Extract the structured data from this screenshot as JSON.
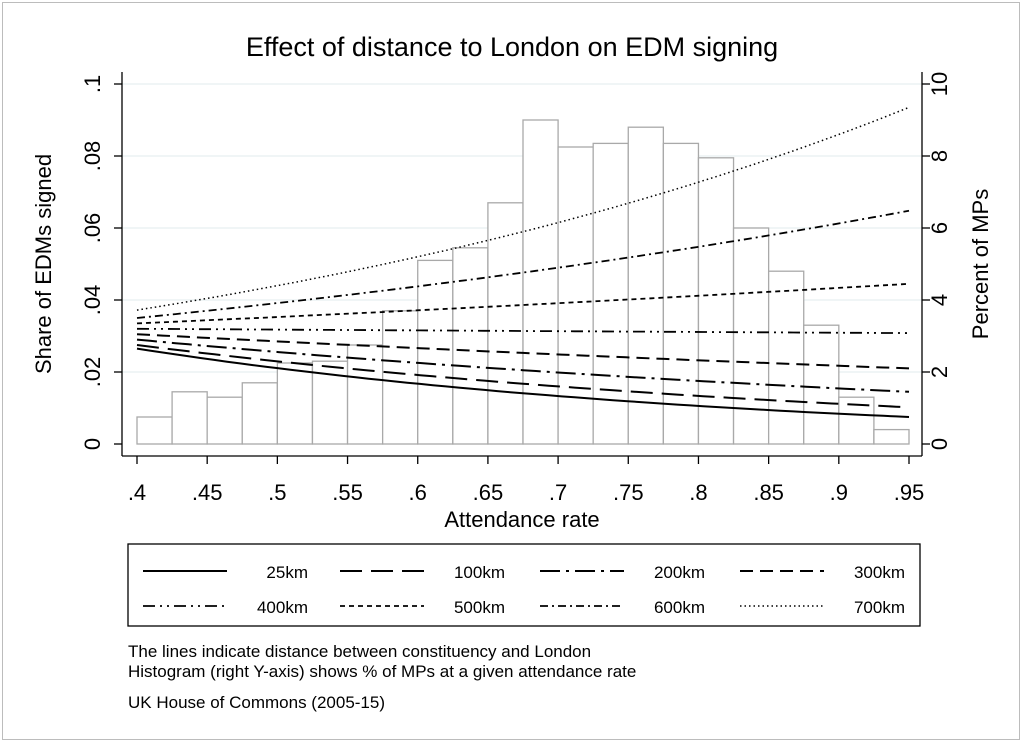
{
  "chart_data": {
    "type": "line",
    "title": "Effect of distance to London on EDM signing",
    "xlabel": "Attendance rate",
    "ylabel": "Share of EDMs signed",
    "y2label": "Percent of MPs",
    "xlim": [
      0.4,
      0.95
    ],
    "ylim": [
      0,
      0.1
    ],
    "y2lim": [
      0,
      10
    ],
    "x_ticks": [
      0.4,
      0.45,
      0.5,
      0.55,
      0.6,
      0.65,
      0.7,
      0.75,
      0.8,
      0.85,
      0.9,
      0.95
    ],
    "x_tick_labels": [
      ".4",
      ".45",
      ".5",
      ".55",
      ".6",
      ".65",
      ".7",
      ".75",
      ".8",
      ".85",
      ".9",
      ".95"
    ],
    "y_ticks": [
      0,
      0.02,
      0.04,
      0.06,
      0.08,
      0.1
    ],
    "y_tick_labels": [
      "0",
      ".02",
      ".04",
      ".06",
      ".08",
      ".1"
    ],
    "y2_ticks": [
      0,
      2,
      4,
      6,
      8,
      10
    ],
    "y2_tick_labels": [
      "0",
      "2",
      "4",
      "6",
      "8",
      "10"
    ],
    "grid": true,
    "legend_position": "bottom",
    "series": [
      {
        "name": "25km",
        "style": "solid",
        "x": [
          0.4,
          0.95
        ],
        "y": [
          0.0265,
          0.0075
        ]
      },
      {
        "name": "100km",
        "style": "longdash",
        "x": [
          0.4,
          0.95
        ],
        "y": [
          0.0275,
          0.0102
        ]
      },
      {
        "name": "200km",
        "style": "longdashdot",
        "x": [
          0.4,
          0.95
        ],
        "y": [
          0.029,
          0.0145
        ]
      },
      {
        "name": "300km",
        "style": "dash",
        "x": [
          0.4,
          0.95
        ],
        "y": [
          0.0305,
          0.021
        ]
      },
      {
        "name": "400km",
        "style": "dashdotdot",
        "x": [
          0.4,
          0.95
        ],
        "y": [
          0.032,
          0.0308
        ]
      },
      {
        "name": "500km",
        "style": "shortdash",
        "x": [
          0.4,
          0.95
        ],
        "y": [
          0.0335,
          0.0445
        ]
      },
      {
        "name": "600km",
        "style": "dashdot",
        "x": [
          0.4,
          0.95
        ],
        "y": [
          0.035,
          0.0648
        ]
      },
      {
        "name": "700km",
        "style": "dot",
        "x": [
          0.4,
          0.95
        ],
        "y": [
          0.0372,
          0.0935
        ]
      }
    ],
    "histogram": {
      "axis": "right",
      "bin_width": 0.025,
      "bin_starts": [
        0.4,
        0.425,
        0.45,
        0.475,
        0.5,
        0.525,
        0.55,
        0.575,
        0.6,
        0.625,
        0.65,
        0.675,
        0.7,
        0.725,
        0.75,
        0.775,
        0.8,
        0.825,
        0.85,
        0.875,
        0.9,
        0.925
      ],
      "percent": [
        0.75,
        1.45,
        1.3,
        1.7,
        2.25,
        2.3,
        2.75,
        3.7,
        5.1,
        5.45,
        6.7,
        9.0,
        8.25,
        8.35,
        8.8,
        8.35,
        7.95,
        6.0,
        4.8,
        3.3,
        1.3,
        0.4
      ]
    }
  },
  "notes": [
    "The lines indicate distance between constituency and London",
    "Histogram (right Y-axis) shows % of MPs at a given attendance rate",
    "UK House of Commons (2005-15)"
  ],
  "colors": {
    "background": "#ffffff",
    "grid": "#e6eff0",
    "bar_stroke": "#a9a9a9",
    "line": "#000000"
  }
}
